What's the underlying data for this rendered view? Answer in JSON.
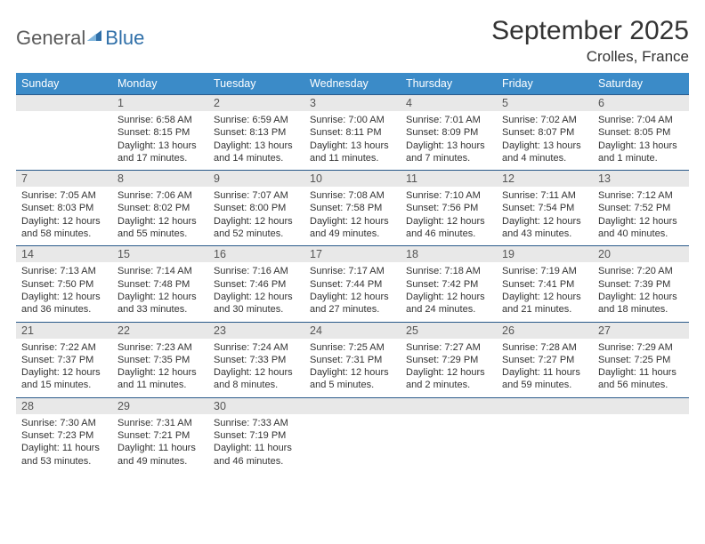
{
  "logo": {
    "text1": "General",
    "text2": "Blue"
  },
  "title": "September 2025",
  "location": "Crolles, France",
  "colors": {
    "header_bg": "#3b8bc8",
    "header_text": "#ffffff",
    "daynum_bg": "#e8e8e8",
    "row_border": "#2a5a8a",
    "body_text": "#333333",
    "logo_gray": "#5a5a5a",
    "logo_blue": "#2f6fa8"
  },
  "weekdays": [
    "Sunday",
    "Monday",
    "Tuesday",
    "Wednesday",
    "Thursday",
    "Friday",
    "Saturday"
  ],
  "weeks": [
    [
      null,
      {
        "n": "1",
        "sr": "6:58 AM",
        "ss": "8:15 PM",
        "dl": "13 hours and 17 minutes."
      },
      {
        "n": "2",
        "sr": "6:59 AM",
        "ss": "8:13 PM",
        "dl": "13 hours and 14 minutes."
      },
      {
        "n": "3",
        "sr": "7:00 AM",
        "ss": "8:11 PM",
        "dl": "13 hours and 11 minutes."
      },
      {
        "n": "4",
        "sr": "7:01 AM",
        "ss": "8:09 PM",
        "dl": "13 hours and 7 minutes."
      },
      {
        "n": "5",
        "sr": "7:02 AM",
        "ss": "8:07 PM",
        "dl": "13 hours and 4 minutes."
      },
      {
        "n": "6",
        "sr": "7:04 AM",
        "ss": "8:05 PM",
        "dl": "13 hours and 1 minute."
      }
    ],
    [
      {
        "n": "7",
        "sr": "7:05 AM",
        "ss": "8:03 PM",
        "dl": "12 hours and 58 minutes."
      },
      {
        "n": "8",
        "sr": "7:06 AM",
        "ss": "8:02 PM",
        "dl": "12 hours and 55 minutes."
      },
      {
        "n": "9",
        "sr": "7:07 AM",
        "ss": "8:00 PM",
        "dl": "12 hours and 52 minutes."
      },
      {
        "n": "10",
        "sr": "7:08 AM",
        "ss": "7:58 PM",
        "dl": "12 hours and 49 minutes."
      },
      {
        "n": "11",
        "sr": "7:10 AM",
        "ss": "7:56 PM",
        "dl": "12 hours and 46 minutes."
      },
      {
        "n": "12",
        "sr": "7:11 AM",
        "ss": "7:54 PM",
        "dl": "12 hours and 43 minutes."
      },
      {
        "n": "13",
        "sr": "7:12 AM",
        "ss": "7:52 PM",
        "dl": "12 hours and 40 minutes."
      }
    ],
    [
      {
        "n": "14",
        "sr": "7:13 AM",
        "ss": "7:50 PM",
        "dl": "12 hours and 36 minutes."
      },
      {
        "n": "15",
        "sr": "7:14 AM",
        "ss": "7:48 PM",
        "dl": "12 hours and 33 minutes."
      },
      {
        "n": "16",
        "sr": "7:16 AM",
        "ss": "7:46 PM",
        "dl": "12 hours and 30 minutes."
      },
      {
        "n": "17",
        "sr": "7:17 AM",
        "ss": "7:44 PM",
        "dl": "12 hours and 27 minutes."
      },
      {
        "n": "18",
        "sr": "7:18 AM",
        "ss": "7:42 PM",
        "dl": "12 hours and 24 minutes."
      },
      {
        "n": "19",
        "sr": "7:19 AM",
        "ss": "7:41 PM",
        "dl": "12 hours and 21 minutes."
      },
      {
        "n": "20",
        "sr": "7:20 AM",
        "ss": "7:39 PM",
        "dl": "12 hours and 18 minutes."
      }
    ],
    [
      {
        "n": "21",
        "sr": "7:22 AM",
        "ss": "7:37 PM",
        "dl": "12 hours and 15 minutes."
      },
      {
        "n": "22",
        "sr": "7:23 AM",
        "ss": "7:35 PM",
        "dl": "12 hours and 11 minutes."
      },
      {
        "n": "23",
        "sr": "7:24 AM",
        "ss": "7:33 PM",
        "dl": "12 hours and 8 minutes."
      },
      {
        "n": "24",
        "sr": "7:25 AM",
        "ss": "7:31 PM",
        "dl": "12 hours and 5 minutes."
      },
      {
        "n": "25",
        "sr": "7:27 AM",
        "ss": "7:29 PM",
        "dl": "12 hours and 2 minutes."
      },
      {
        "n": "26",
        "sr": "7:28 AM",
        "ss": "7:27 PM",
        "dl": "11 hours and 59 minutes."
      },
      {
        "n": "27",
        "sr": "7:29 AM",
        "ss": "7:25 PM",
        "dl": "11 hours and 56 minutes."
      }
    ],
    [
      {
        "n": "28",
        "sr": "7:30 AM",
        "ss": "7:23 PM",
        "dl": "11 hours and 53 minutes."
      },
      {
        "n": "29",
        "sr": "7:31 AM",
        "ss": "7:21 PM",
        "dl": "11 hours and 49 minutes."
      },
      {
        "n": "30",
        "sr": "7:33 AM",
        "ss": "7:19 PM",
        "dl": "11 hours and 46 minutes."
      },
      null,
      null,
      null,
      null
    ]
  ],
  "labels": {
    "sunrise": "Sunrise:",
    "sunset": "Sunset:",
    "daylight": "Daylight:"
  }
}
